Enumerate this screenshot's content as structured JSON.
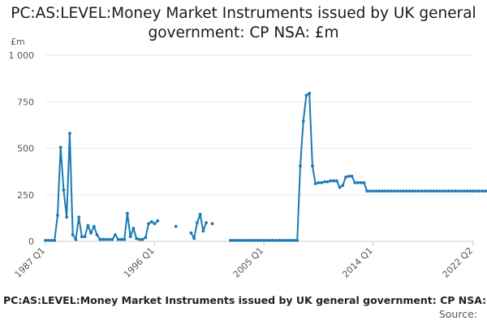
{
  "chart_data": {
    "type": "line",
    "title": "PC:AS:LEVEL:Money Market Instruments issued by UK general government: CP NSA: £m",
    "ylabel": "£m",
    "ylim": [
      0,
      1000
    ],
    "yticks": [
      0,
      250,
      500,
      750,
      1000
    ],
    "ytick_labels": [
      "0",
      "250",
      "500",
      "750",
      "1 000"
    ],
    "x_range": [
      "1987 Q1",
      "2022 Q2"
    ],
    "xticks": [
      "1987 Q1",
      "1996 Q1",
      "2005 Q1",
      "2014 Q1",
      "2022 Q2"
    ],
    "grid": "horizontal",
    "color": "#1a7ab3",
    "series": [
      {
        "values": [
          5,
          5,
          5,
          5,
          140,
          505,
          275,
          130,
          580,
          35,
          10,
          130,
          25,
          25,
          85,
          45,
          80,
          35,
          10,
          10,
          10,
          10,
          10,
          35,
          10,
          10,
          10,
          150,
          25,
          70,
          15,
          10,
          10,
          20,
          95,
          105,
          95,
          110,
          null,
          null,
          null,
          null,
          null,
          80,
          null,
          null,
          null,
          null,
          45,
          15,
          100,
          145,
          55,
          100,
          null,
          95,
          null,
          null,
          null,
          null,
          null,
          5,
          5,
          5,
          5,
          5,
          5,
          5,
          5,
          5,
          5,
          5,
          5,
          5,
          5,
          5,
          5,
          5,
          5,
          5,
          5,
          5,
          5,
          5,
          405,
          645,
          785,
          795,
          405,
          310,
          315,
          315,
          320,
          320,
          325,
          325,
          325,
          290,
          300,
          345,
          350,
          350,
          315,
          315,
          315,
          315,
          270,
          270,
          270,
          270,
          270,
          270,
          270,
          270,
          270,
          270,
          270,
          270,
          270,
          270,
          270,
          270,
          270,
          270,
          270,
          270,
          270,
          270,
          270,
          270,
          270,
          270,
          270,
          270,
          270,
          270,
          270,
          270,
          270,
          270,
          270,
          270,
          270,
          270,
          270,
          270,
          270,
          270,
          270,
          270,
          270
        ]
      }
    ]
  },
  "footer": {
    "title": "PC:AS:LEVEL:Money Market Instruments issued by UK general government: CP NSA: £m",
    "source": "Source:"
  }
}
